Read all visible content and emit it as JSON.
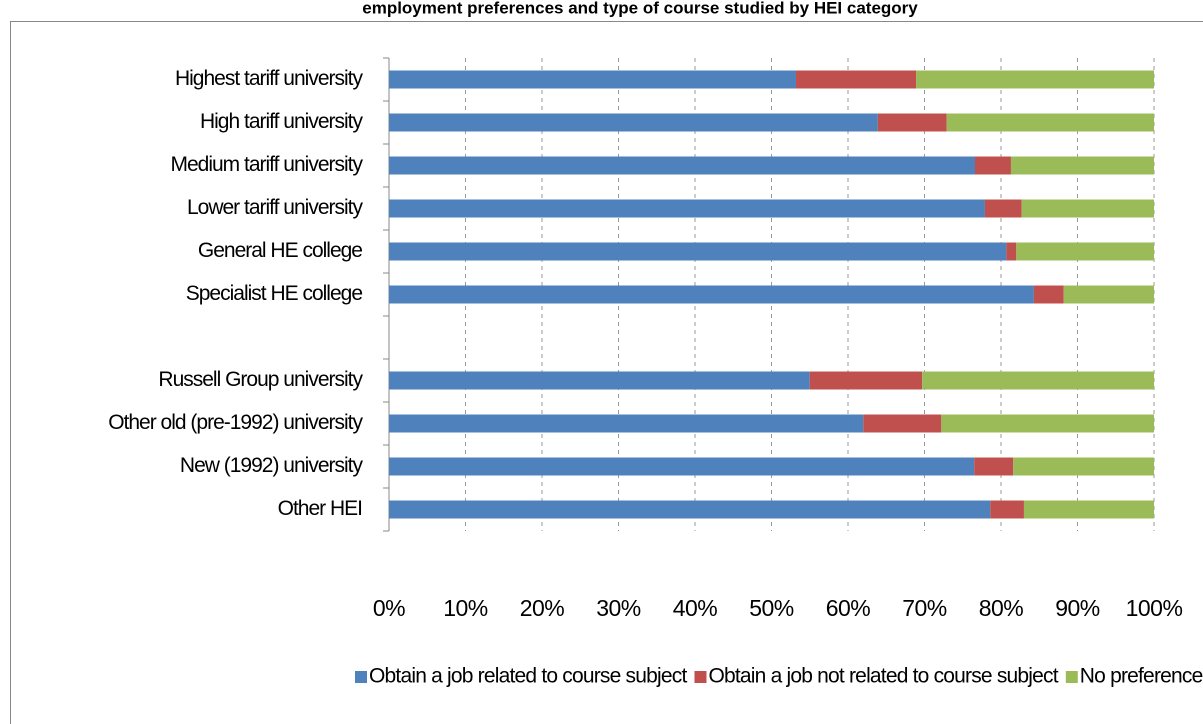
{
  "chart_data": {
    "type": "stacked_barh",
    "title": "employment preferences and type of course studied by HEI category",
    "categories": [
      "Highest tariff university",
      "High tariff university",
      "Medium tariff university",
      "Lower tariff university",
      "General HE college",
      "Specialist HE college",
      null,
      "Russell Group university",
      "Other old (pre-1992) university",
      "New (1992) university",
      "Other HEI"
    ],
    "series": [
      {
        "name": "Obtain a job related to course subject",
        "color": "#4f81bd",
        "values": [
          53.2,
          63.9,
          76.6,
          77.9,
          80.7,
          84.3,
          null,
          55,
          62,
          76.5,
          78.6
        ]
      },
      {
        "name": "Obtain a job not related to course subject",
        "color": "#c0504d",
        "values": [
          15.7,
          9,
          4.7,
          4.8,
          1.3,
          3.9,
          null,
          14.7,
          10.2,
          5.1,
          4.4
        ]
      },
      {
        "name": "No preference",
        "color": "#9bbb59",
        "values": [
          31.1,
          27.1,
          18.7,
          17.3,
          18,
          11.8,
          null,
          30.3,
          27.8,
          18.4,
          17
        ]
      }
    ],
    "xlim": [
      0,
      100
    ],
    "xticks": [
      {
        "value": 0,
        "label": "0%"
      },
      {
        "value": 10,
        "label": "10%"
      },
      {
        "value": 20,
        "label": "20%"
      },
      {
        "value": 30,
        "label": "30%"
      },
      {
        "value": 40,
        "label": "40%"
      },
      {
        "value": 50,
        "label": "50%"
      },
      {
        "value": 60,
        "label": "60%"
      },
      {
        "value": 70,
        "label": "70%"
      },
      {
        "value": 80,
        "label": "80%"
      },
      {
        "value": 90,
        "label": "90%"
      },
      {
        "value": 100,
        "label": "100%"
      }
    ],
    "grid": true,
    "legend": "bottom"
  }
}
